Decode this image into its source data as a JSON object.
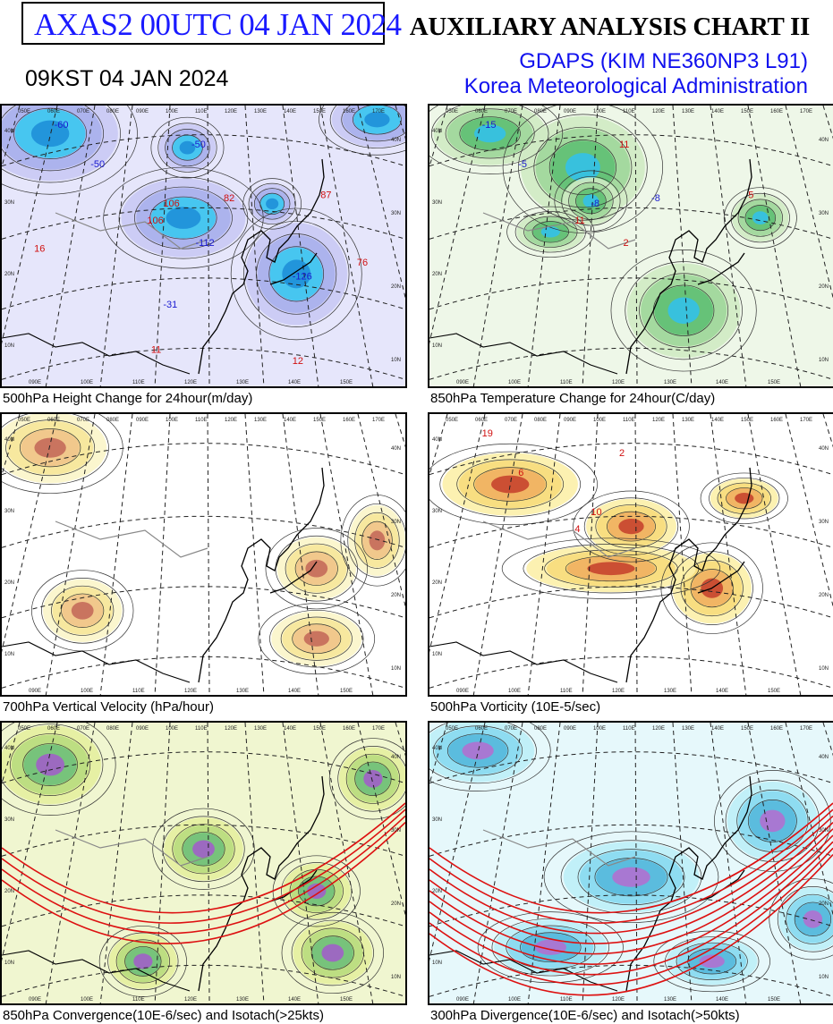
{
  "header": {
    "chart_id": "AXAS2  00UTC 04 JAN 2024",
    "title": "AUXILIARY ANALYSIS CHART II",
    "model": "GDAPS (KIM NE360NP3 L91)",
    "agency": "Korea Meteorological Administration",
    "local_time": "09KST 04 JAN 2024"
  },
  "panels": [
    {
      "caption": "500hPa Height Change for 24hour(m/day)",
      "theme": "blue",
      "labels": [
        "-60",
        "-50",
        "106",
        "106",
        "-50",
        "82",
        "-112",
        "87",
        "-126",
        "-31",
        "76",
        "16",
        "12",
        "11"
      ]
    },
    {
      "caption": "850hPa Temperature Change for 24hour(C/day)",
      "theme": "green",
      "labels": [
        "-15",
        "-5",
        "-8",
        "11",
        "11",
        "-8",
        "2",
        "5"
      ]
    },
    {
      "caption": "700hPa Vertical Velocity (hPa/hour)",
      "theme": "yellow",
      "labels": []
    },
    {
      "caption": "500hPa Vorticity (10E-5/sec)",
      "theme": "orange",
      "labels": [
        "19",
        "6",
        "10",
        "4",
        "2"
      ]
    },
    {
      "caption": "850hPa Convergence(10E-6/sec) and Isotach(>25kts)",
      "theme": "lime",
      "labels": []
    },
    {
      "caption": "300hPa Divergence(10E-6/sec) and Isotach(>50kts)",
      "theme": "cyan",
      "labels": []
    }
  ],
  "lon_labels_top": [
    "050E",
    "060E",
    "070E",
    "080E",
    "090E",
    "100E",
    "110E",
    "120E",
    "130E",
    "140E",
    "150E",
    "160E",
    "170E"
  ],
  "lon_labels_bottom": [
    "090E",
    "100E",
    "110E",
    "120E",
    "130E",
    "140E",
    "150E"
  ],
  "lat_labels_left": [
    "40N",
    "30N",
    "20N",
    "10N"
  ],
  "lat_labels_right": [
    "40N",
    "30N",
    "20N",
    "10N"
  ],
  "colors": {
    "title_blue": "#1a1aff",
    "subtitle_blue": "#1010ee",
    "contour": "#333333",
    "isotach_red": "#dd1111"
  }
}
